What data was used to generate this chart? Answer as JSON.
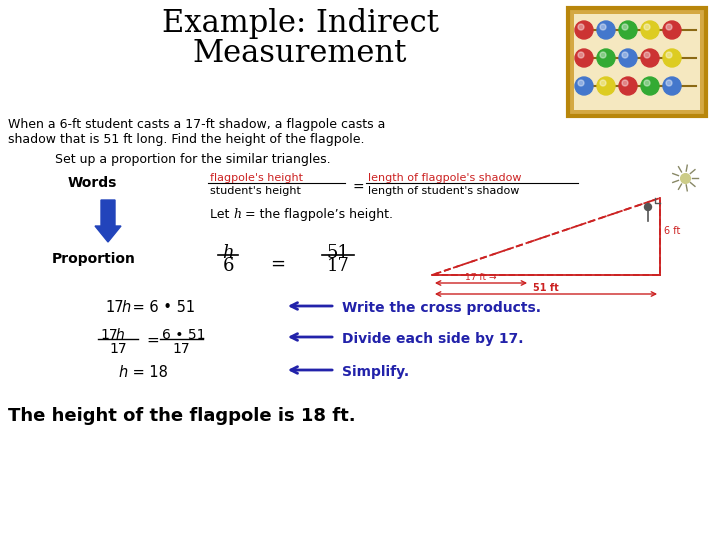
{
  "title_line1": "Example: Indirect",
  "title_line2": "Measurement",
  "title_fontsize": 22,
  "bg_color": "#ffffff",
  "text_color": "#000000",
  "red_color": "#cc2222",
  "blue_color": "#2222aa",
  "dark_blue": "#1a1aaa",
  "body_text1": "When a 6-ft student casts a 17-ft shadow, a flagpole casts a",
  "body_text2": "shadow that is 51 ft long. Find the height of the flagpole.",
  "set_up_text": "Set up a proportion for the similar triangles.",
  "words_label": "Words",
  "proportion_label": "Proportion",
  "cross_products_text": "Write the cross products.",
  "divide_text": "Divide each side by 17.",
  "simplify_text": "Simplify.",
  "final_text": "The height of the flagpole is 18 ft.",
  "abacus_frame_color": "#b8860b",
  "abacus_bg": "#d4a843",
  "bead_rows": [
    [
      "#cc3333",
      "#4477cc",
      "#33aa33",
      "#ddcc22",
      "#cc3333"
    ],
    [
      "#cc3333",
      "#33aa33",
      "#4477cc",
      "#cc3333",
      "#ddcc22"
    ],
    [
      "#4477cc",
      "#ddcc22",
      "#cc3333",
      "#33aa33",
      "#4477cc"
    ]
  ]
}
